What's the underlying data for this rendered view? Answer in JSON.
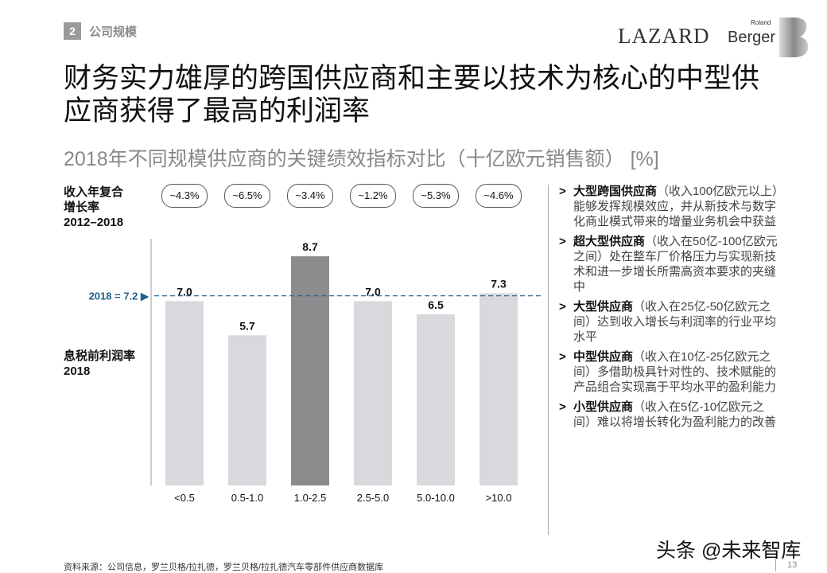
{
  "header": {
    "section_number": "2",
    "section_name": "公司规模",
    "logo_lazard": "LAZARD",
    "logo_roland": "Roland",
    "logo_berger": "Berger"
  },
  "title": "财务实力雄厚的跨国供应商和主要以技术为核心的中型供应商获得了最高的利润率",
  "subtitle": "2018年不同规模供应商的关键绩效指标对比（十亿欧元销售额） [%]",
  "cagr_label": [
    "收入年复合",
    "增长率",
    "2012–2018"
  ],
  "ebit_label": [
    "息税前利润率",
    "2018"
  ],
  "chart_data": {
    "type": "bar",
    "categories": [
      "<0.5",
      "0.5-1.0",
      "1.0-2.5",
      "2.5-5.0",
      "5.0-10.0",
      ">10.0"
    ],
    "values": [
      7.0,
      5.7,
      8.7,
      7.0,
      6.5,
      7.3
    ],
    "cagr": [
      "~4.3%",
      "~6.5%",
      "~3.4%",
      "~1.2%",
      "~5.3%",
      "~4.6%"
    ],
    "highlighted_category": "1.0-2.5",
    "reference_line": {
      "label": "2018 = 7.2 ▶",
      "value": 7.2
    },
    "ylim": [
      0,
      9.5
    ],
    "colors": {
      "bar": "#d9d9dd",
      "highlight": "#8c8c8e",
      "reference": "#1f5f8b"
    }
  },
  "bullets": [
    {
      "bold": "大型跨国供应商",
      "text": "（收入100亿欧元以上）能够发挥规模效应，并从新技术与数字化商业模式带来的增量业务机会中获益"
    },
    {
      "bold": "超大型供应商",
      "text": "（收入在50亿-100亿欧元之间）处在整车厂价格压力与实现新技术和进一步增长所需高资本要求的夹缝中"
    },
    {
      "bold": "大型供应商",
      "text": "（收入在25亿-50亿欧元之间）达到收入增长与利润率的行业平均水平"
    },
    {
      "bold": "中型供应商",
      "text": "（收入在10亿-25亿欧元之间）多借助极具针对性的、技术赋能的产品组合实现高于平均水平的盈利能力"
    },
    {
      "bold": "小型供应商",
      "text": "（收入在5亿-10亿欧元之间）难以将增长转化为盈利能力的改善"
    }
  ],
  "bullet_marker": ">",
  "source": "资料来源：公司信息，罗兰贝格/拉扎德，罗兰贝格/拉扎德汽车零部件供应商数据库",
  "watermark": "头条 @未来智库",
  "page_number": "13"
}
